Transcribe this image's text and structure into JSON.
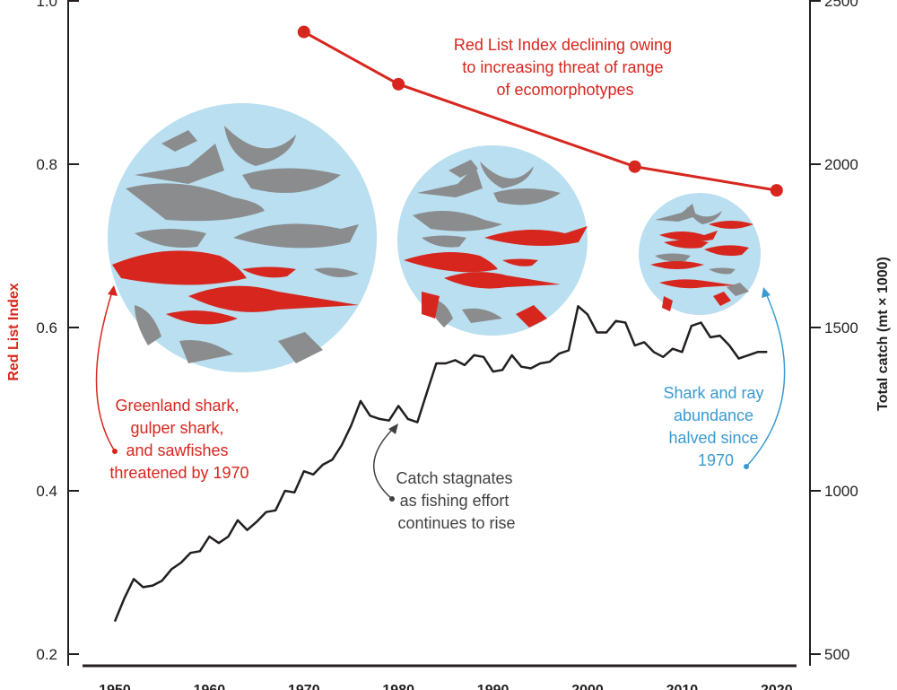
{
  "chart_data": {
    "type": "line",
    "x_ticks": [
      1950,
      1960,
      1970,
      1980,
      1990,
      2000,
      2010,
      2020
    ],
    "xlim": [
      1950,
      2020
    ],
    "left_axis": {
      "label": "Red List Index",
      "ticks": [
        "0.2",
        "0.4",
        "0.6",
        "0.8",
        "1.0"
      ],
      "tick_values": [
        0.2,
        0.4,
        0.6,
        0.8,
        1.0
      ],
      "ylim": [
        0.2,
        1.0
      ]
    },
    "right_axis": {
      "label": "Total catch (mt × 1000)",
      "ticks": [
        "500",
        "1000",
        "1500",
        "2000",
        "2500"
      ],
      "tick_values": [
        500,
        1000,
        1500,
        2000,
        2500
      ],
      "ylim": [
        500,
        2500
      ]
    },
    "series": [
      {
        "axis": "left",
        "color": "#d7261e",
        "x": [
          1970,
          1980,
          2005,
          2020
        ],
        "y": [
          0.962,
          0.898,
          0.797,
          0.768
        ]
      },
      {
        "axis": "right",
        "color": "#231f20",
        "x": [
          1950,
          1951,
          1952,
          1953,
          1954,
          1955,
          1956,
          1957,
          1958,
          1959,
          1960,
          1961,
          1962,
          1963,
          1964,
          1965,
          1966,
          1967,
          1968,
          1969,
          1970,
          1971,
          1972,
          1973,
          1974,
          1975,
          1976,
          1977,
          1978,
          1979,
          1980,
          1981,
          1982,
          1983,
          1984,
          1985,
          1986,
          1987,
          1988,
          1989,
          1990,
          1991,
          1992,
          1993,
          1994,
          1995,
          1996,
          1997,
          1998,
          1999,
          2000,
          2001,
          2002,
          2003,
          2004,
          2005,
          2006,
          2007,
          2008,
          2009,
          2010,
          2011,
          2012,
          2013,
          2014,
          2015,
          2016,
          2017,
          2018,
          2019
        ],
        "y": [
          600,
          670,
          730,
          705,
          710,
          725,
          760,
          780,
          810,
          815,
          860,
          840,
          860,
          910,
          880,
          905,
          935,
          940,
          1000,
          995,
          1060,
          1050,
          1080,
          1095,
          1140,
          1200,
          1275,
          1230,
          1220,
          1215,
          1260,
          1220,
          1210,
          1300,
          1390,
          1390,
          1400,
          1385,
          1415,
          1410,
          1365,
          1370,
          1415,
          1380,
          1375,
          1390,
          1395,
          1420,
          1430,
          1565,
          1540,
          1485,
          1485,
          1520,
          1515,
          1445,
          1455,
          1425,
          1410,
          1435,
          1425,
          1505,
          1515,
          1470,
          1475,
          1445,
          1405,
          1415,
          1425,
          1425
        ]
      }
    ],
    "annotations": [
      {
        "lines": [
          "Red List Index declining owing",
          "to increasing threat of range",
          "of ecomorphotypes"
        ],
        "color": "#d7261e"
      },
      {
        "lines": [
          "Greenland shark,",
          "gulper shark,",
          "and sawfishes",
          "threatened by 1970"
        ],
        "color": "#d7261e"
      },
      {
        "lines": [
          "Catch stagnates",
          "as fishing effort",
          "continues to rise"
        ],
        "color": "#414042"
      },
      {
        "lines": [
          "Shark and ray",
          "abundance",
          "halved since",
          "1970"
        ],
        "color": "#3a9ad0"
      }
    ],
    "colors": {
      "red_list": "#d7261e",
      "catch": "#231f20",
      "circle_fill": "#b9dff0",
      "threatened_species": "#d7261e",
      "non_threatened_species": "#8a8c8e",
      "abundance_annotation": "#3a9ad0"
    },
    "species_circles": [
      {
        "year": 1970,
        "threatened": "few"
      },
      {
        "year": 1990,
        "threatened": "more"
      },
      {
        "year": 2015,
        "threatened": "most"
      }
    ],
    "grid": false
  }
}
